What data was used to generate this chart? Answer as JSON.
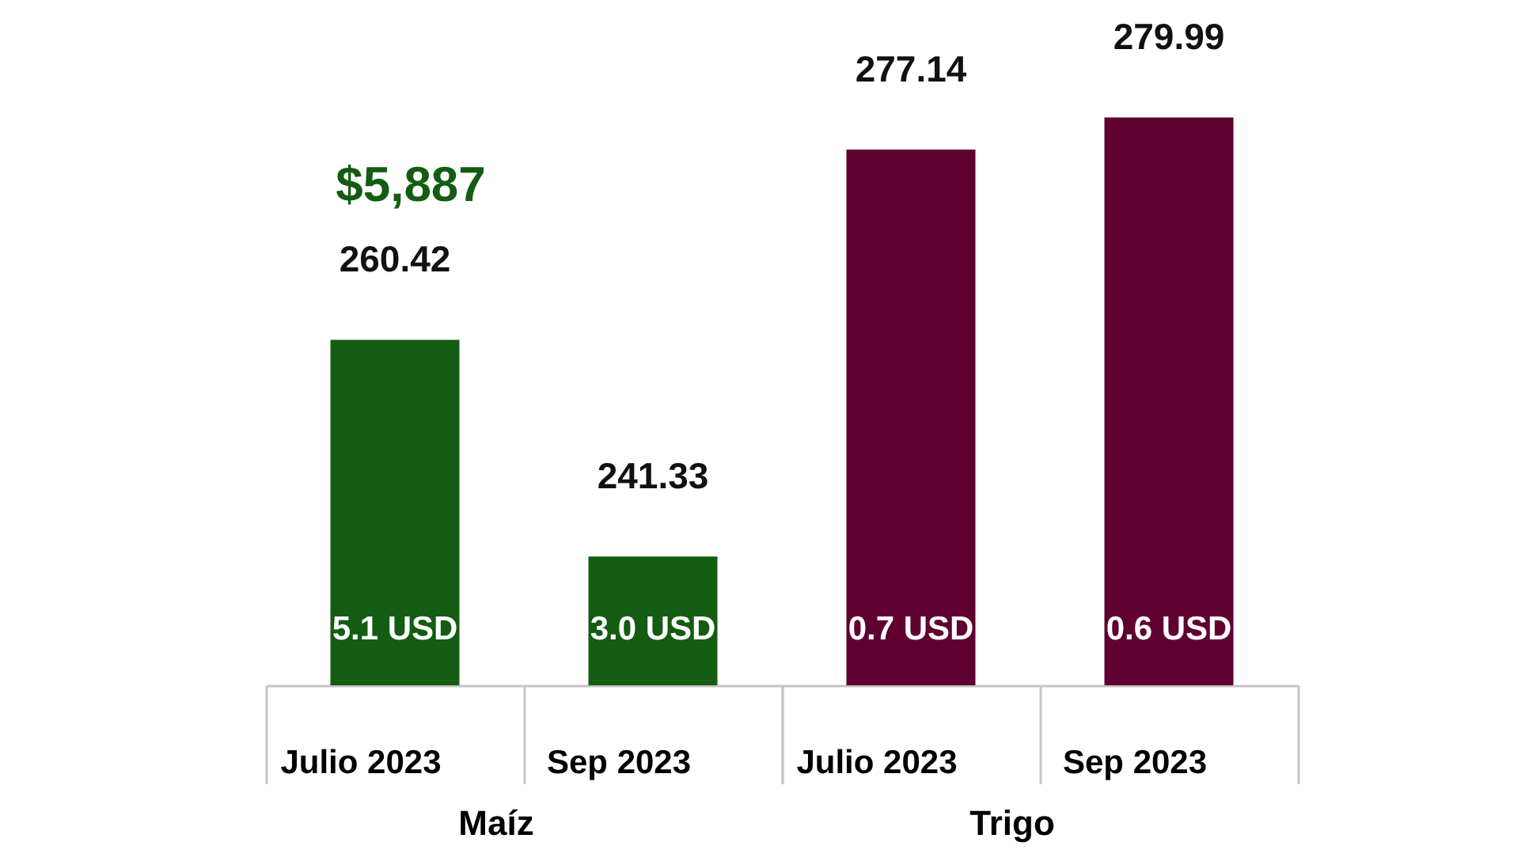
{
  "chart_data": [
    {
      "type": "bar",
      "categories": [
        "Julio 2023",
        "Sep 2023"
      ],
      "values": [
        260.42,
        241.33
      ],
      "color": "#135c12",
      "xlabel": "Maíz",
      "ylim": [
        230,
        260.42
      ],
      "tick_labels": "x",
      "data_labels": true,
      "annotations": [
        "$5,887",
        "5.1 USD",
        "3.0 USD"
      ]
    },
    {
      "type": "bar",
      "categories": [
        "Julio 2023",
        "Sep 2023"
      ],
      "values": [
        277.14,
        279.99
      ],
      "color": "#5f0030",
      "xlabel": "Trigo",
      "ylim": [
        230,
        279.99
      ],
      "tick_labels": "x",
      "data_labels": true,
      "annotations": [
        "0.7 USD",
        "0.6 USD"
      ]
    }
  ]
}
